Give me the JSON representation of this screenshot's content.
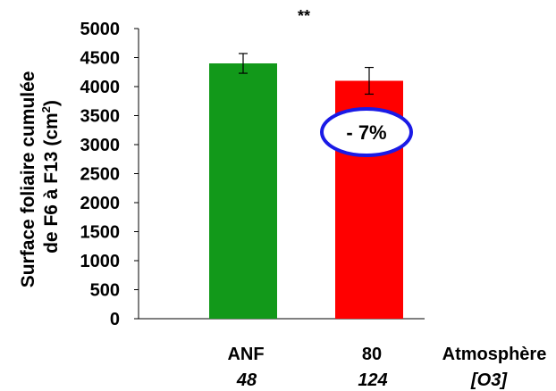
{
  "chart_data": {
    "type": "bar",
    "categories": [
      "ANF",
      "80"
    ],
    "category_sublabels": [
      "48",
      "124"
    ],
    "values": [
      4400,
      4100
    ],
    "errors": [
      170,
      230
    ],
    "colors": [
      "#12991A",
      "#FF0000"
    ],
    "ylim": [
      0,
      5000
    ],
    "yticks": [
      0,
      500,
      1000,
      1500,
      2000,
      2500,
      3000,
      3500,
      4000,
      4500,
      5000
    ],
    "ylabel_line1": "Surface foliaire cumulée",
    "ylabel_line2_prefix": "de F6 à F13 (cm",
    "ylabel_sup": "2",
    "ylabel_line2_suffix": ")",
    "xaxis_title": "Atmosphère",
    "xaxis_subtitle": "[O3]",
    "significance": "**",
    "annotation": "- 7%",
    "annotation_color": "#1A1AE6",
    "grid": false,
    "legend": "none"
  }
}
